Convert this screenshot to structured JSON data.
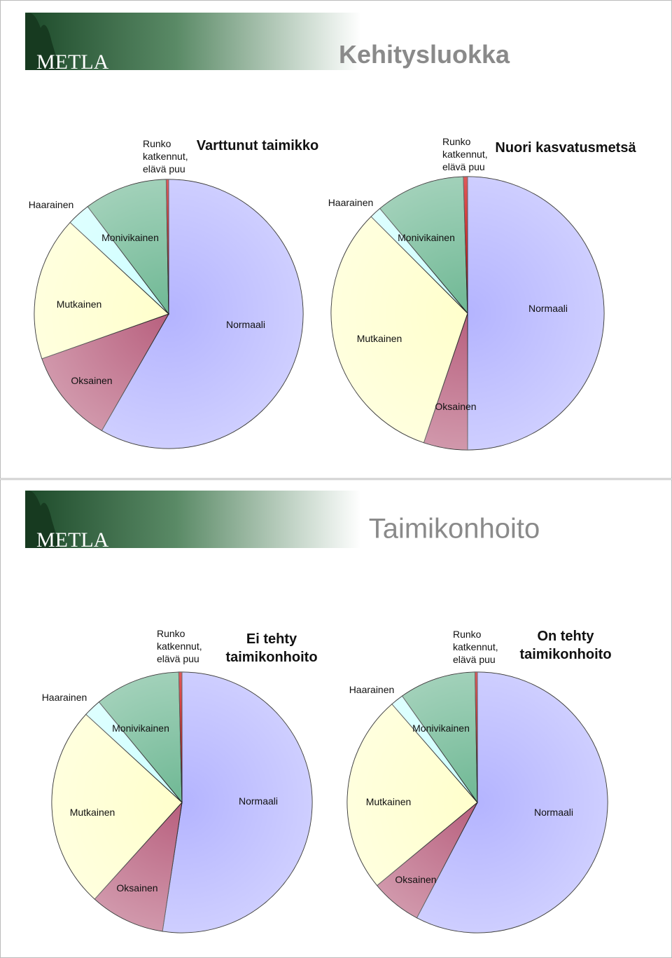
{
  "logo": "METLA",
  "slides": [
    {
      "title": "Kehitysluokka"
    },
    {
      "title": "Taimikonhoito"
    }
  ],
  "chart_data": [
    {
      "type": "pie",
      "title": "Varttunut taimikko",
      "categories": [
        "Normaali",
        "Oksainen",
        "Mutkainen",
        "Haarainen",
        "Monivikainen",
        "Runko katkennut, elävä puu"
      ],
      "values": [
        58.3,
        11.3,
        17.3,
        2.8,
        10.0,
        0.3
      ],
      "colors": [
        "#b4b4ff",
        "#b8607e",
        "#ffffcc",
        "#ccffff",
        "#6fb894",
        "#cc0000"
      ]
    },
    {
      "type": "pie",
      "title": "Nuori kasvatusmetsä",
      "categories": [
        "Normaali",
        "Oksainen",
        "Mutkainen",
        "Haarainen",
        "Monivikainen",
        "Runko katkennut, elävä puu"
      ],
      "values": [
        50.0,
        5.2,
        32.3,
        1.4,
        10.6,
        0.5
      ],
      "colors": [
        "#b4b4ff",
        "#b8607e",
        "#ffffcc",
        "#ccffff",
        "#6fb894",
        "#cc0000"
      ]
    },
    {
      "type": "pie",
      "title": "Ei tehty taimikonhoito",
      "categories": [
        "Normaali",
        "Oksainen",
        "Mutkainen",
        "Haarainen",
        "Monivikainen",
        "Runko katkennut, elävä puu"
      ],
      "values": [
        52.4,
        9.3,
        25.1,
        2.2,
        10.6,
        0.4
      ],
      "colors": [
        "#b4b4ff",
        "#b8607e",
        "#ffffcc",
        "#ccffff",
        "#6fb894",
        "#cc0000"
      ]
    },
    {
      "type": "pie",
      "title": "On tehty taimikonhoito",
      "categories": [
        "Normaali",
        "Oksainen",
        "Mutkainen",
        "Haarainen",
        "Monivikainen",
        "Runko katkennut, elävä puu"
      ],
      "values": [
        57.7,
        6.3,
        24.6,
        1.6,
        9.5,
        0.3
      ],
      "colors": [
        "#b4b4ff",
        "#b8607e",
        "#ffffcc",
        "#ccffff",
        "#6fb894",
        "#cc0000"
      ]
    }
  ]
}
